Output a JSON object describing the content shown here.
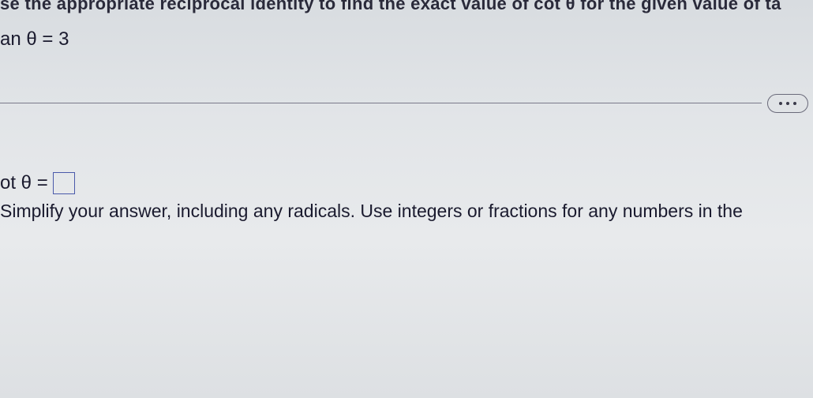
{
  "problem": {
    "top_partial_prompt": "se the appropriate reciprocal identity to find the exact value of cot θ for the given value of ta",
    "given_label": "an θ = 3",
    "answer_label": "ot θ =",
    "instruction": "Simplify your answer, including any radicals. Use integers or fractions for any numbers in the"
  },
  "styling": {
    "background_gradient_top": "#d8dce0",
    "background_gradient_bottom": "#dde0e3",
    "text_color": "#1a1a2e",
    "divider_color": "#7a7a8a",
    "answer_box_border": "#4a5aaa",
    "ellipsis_border": "#6a6a7a",
    "font_size_main": 24,
    "font_size_instruction": 23
  }
}
